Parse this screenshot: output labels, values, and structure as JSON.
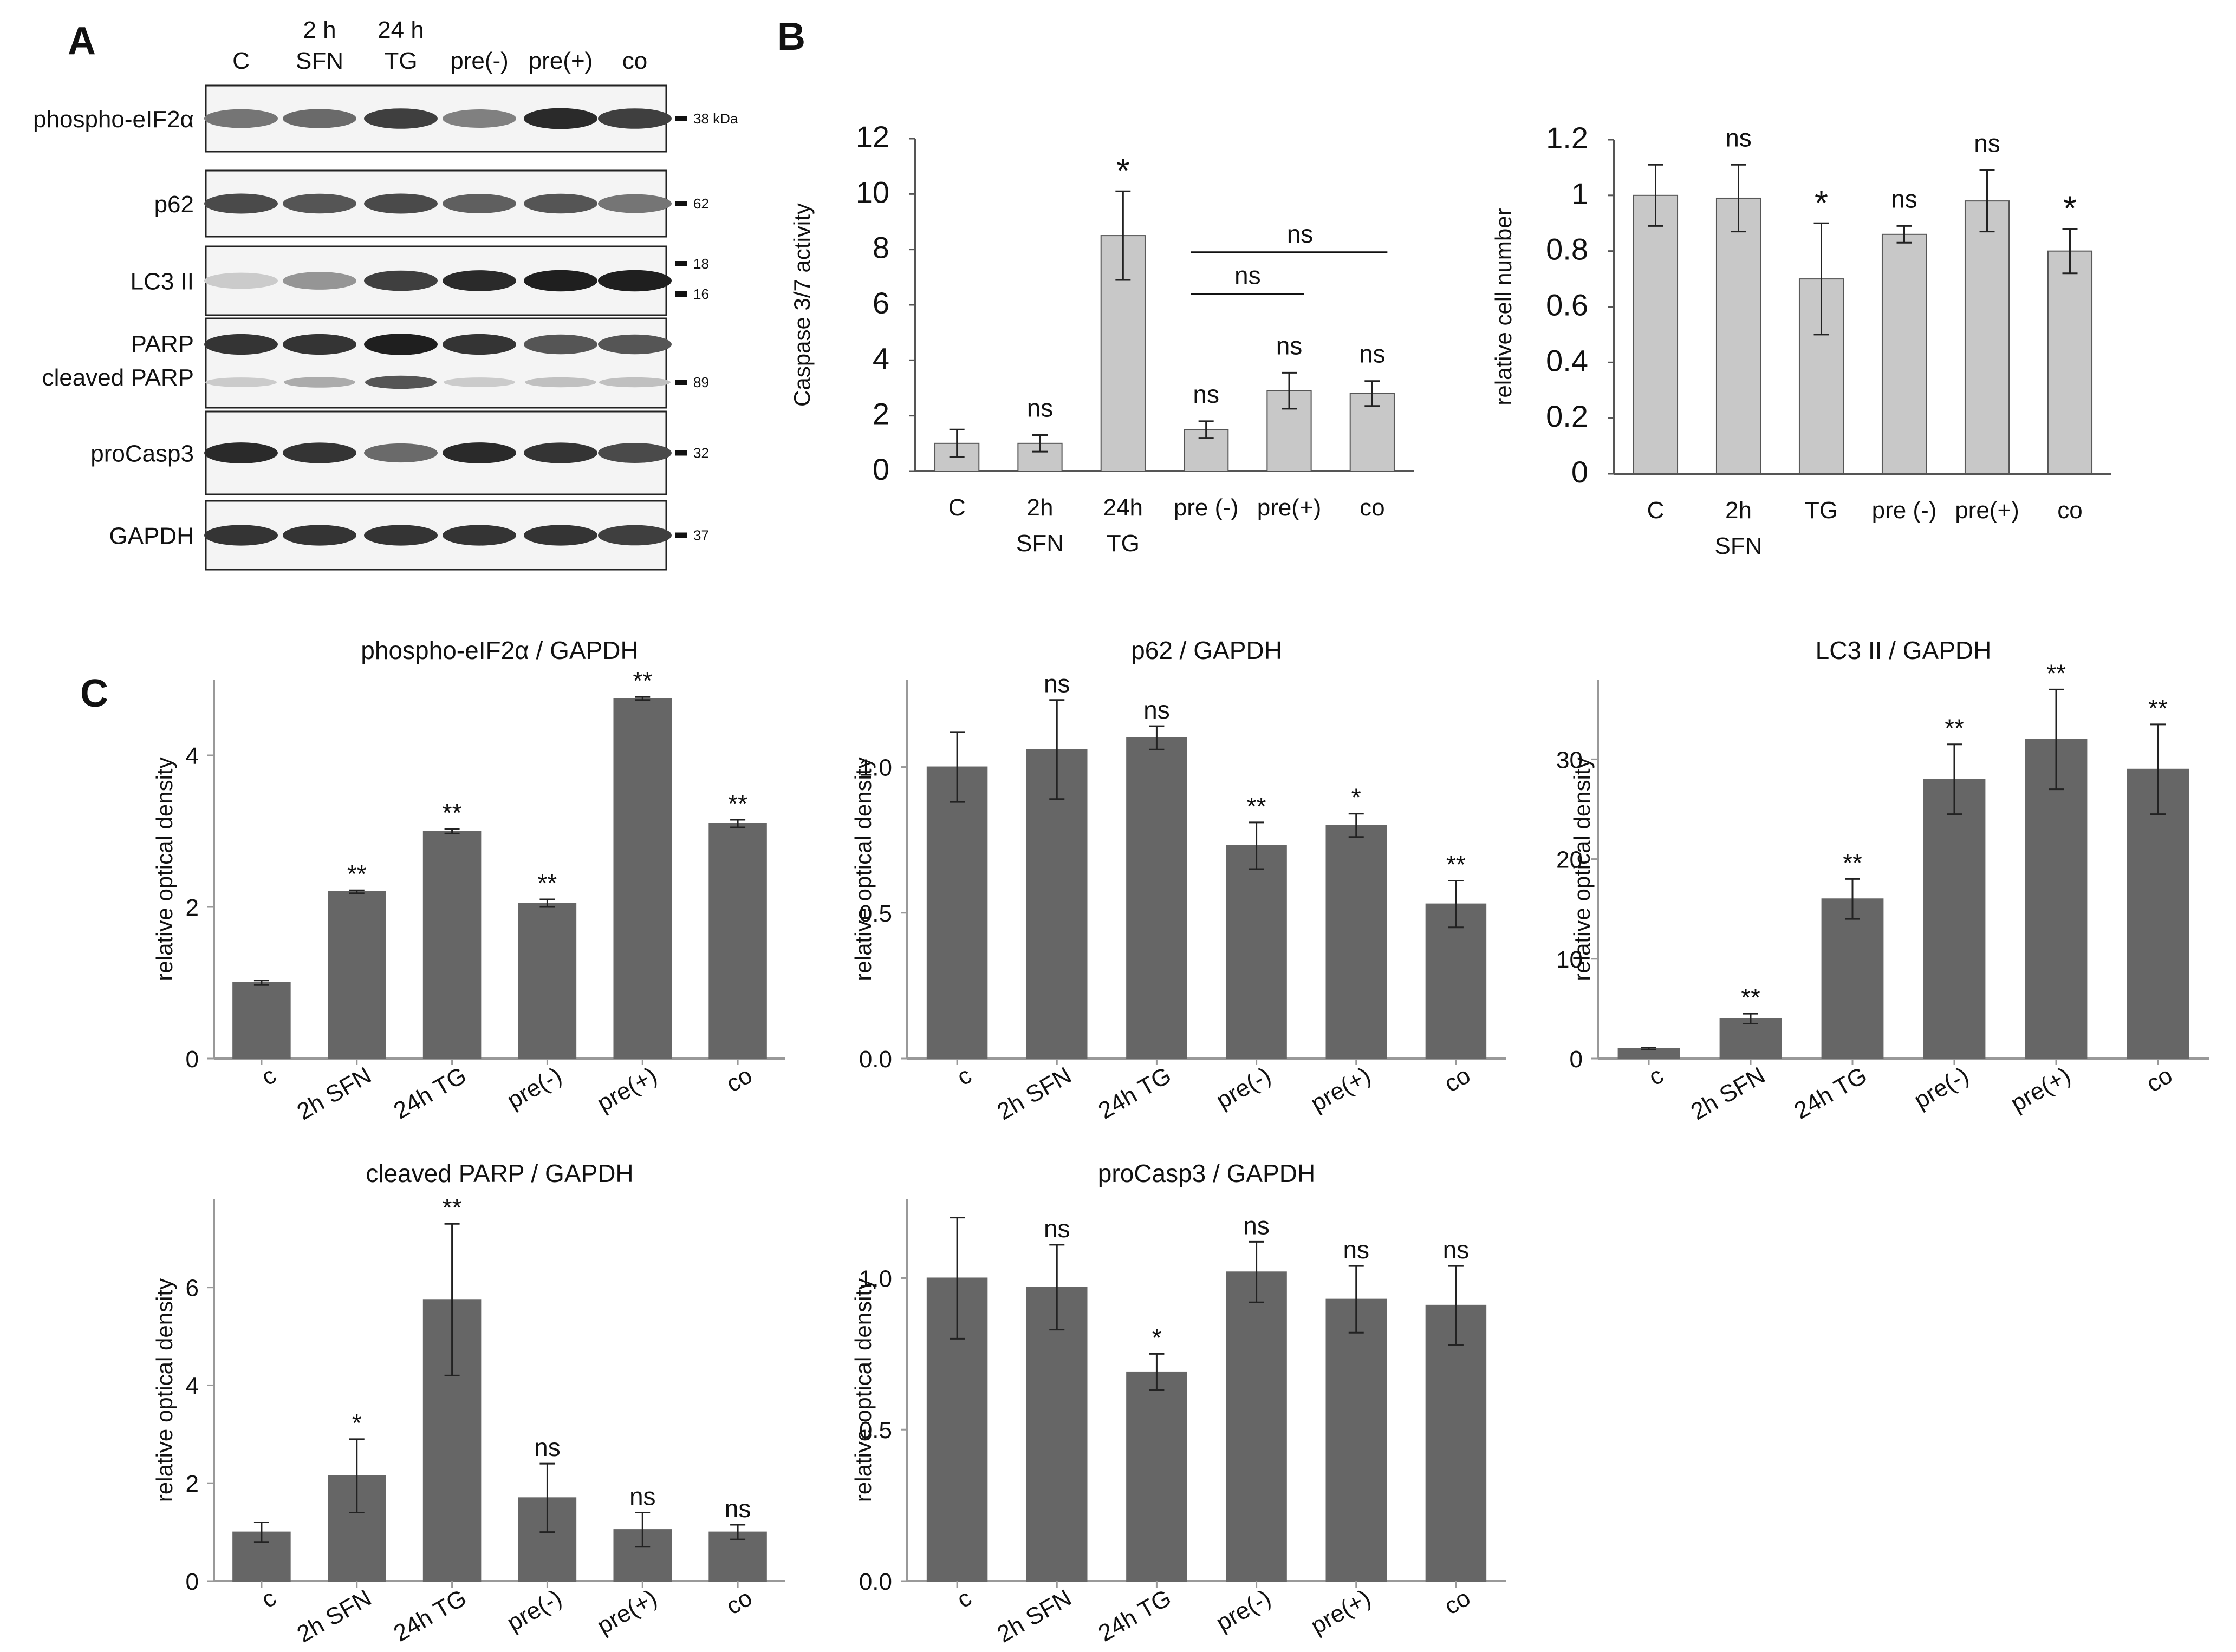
{
  "figure": {
    "panel_letters": [
      "A",
      "B",
      "C"
    ]
  },
  "blot": {
    "lanes": [
      {
        "line1": "C",
        "line2": ""
      },
      {
        "line1": "2 h",
        "line2": "SFN"
      },
      {
        "line1": "24 h",
        "line2": "TG"
      },
      {
        "line1": "pre(-)",
        "line2": ""
      },
      {
        "line1": "pre(+)",
        "line2": ""
      },
      {
        "line1": "co",
        "line2": ""
      }
    ],
    "rows": [
      {
        "labels": [
          "phospho-eIF2α"
        ],
        "markers": [
          "38 kDa"
        ],
        "intensity": [
          0.55,
          0.6,
          0.8,
          0.5,
          0.9,
          0.8
        ]
      },
      {
        "labels": [
          "p62"
        ],
        "markers": [
          "62"
        ],
        "intensity": [
          0.75,
          0.7,
          0.75,
          0.65,
          0.7,
          0.55
        ]
      },
      {
        "labels": [
          "LC3 II"
        ],
        "markers": [
          "18",
          "16"
        ],
        "intensity": [
          0.15,
          0.4,
          0.8,
          0.9,
          0.95,
          0.95
        ]
      },
      {
        "labels": [
          "PARP",
          "cleaved PARP"
        ],
        "markers": [
          "89"
        ],
        "intensity": [
          0.85,
          0.85,
          0.95,
          0.85,
          0.7,
          0.7
        ],
        "intensity2": [
          0.15,
          0.3,
          0.7,
          0.15,
          0.2,
          0.2
        ]
      },
      {
        "labels": [
          "proCasp3"
        ],
        "markers": [
          "32"
        ],
        "intensity": [
          0.9,
          0.85,
          0.6,
          0.9,
          0.85,
          0.75
        ]
      },
      {
        "labels": [
          "GAPDH"
        ],
        "markers": [
          "37"
        ],
        "intensity": [
          0.85,
          0.85,
          0.85,
          0.85,
          0.85,
          0.8
        ]
      }
    ]
  },
  "chart_data": [
    {
      "id": "caspase",
      "type": "bar",
      "title": "",
      "xlabel": "",
      "ylabel": "Caspase 3/7 activity",
      "ylim": [
        0,
        12
      ],
      "yticks": [
        "0",
        "2",
        "4",
        "6",
        "8",
        "10",
        "12"
      ],
      "categories": [
        "C",
        "2h\nSFN",
        "24h\nTG",
        "pre (-)",
        "pre(+)",
        "co"
      ],
      "values": [
        1.0,
        1.0,
        8.5,
        1.5,
        2.9,
        2.8
      ],
      "errors": [
        0.5,
        0.3,
        1.6,
        0.3,
        0.65,
        0.45
      ],
      "significance": [
        "",
        "ns",
        "*",
        "ns",
        "ns",
        "ns"
      ],
      "brackets": [
        {
          "label": "ns",
          "from": 3,
          "to": 4,
          "y": 6.4
        },
        {
          "label": "ns",
          "from": 3,
          "to": 5,
          "y": 7.9
        }
      ],
      "colors": {
        "bar": "#c8c8c8",
        "edge": "#555555"
      }
    },
    {
      "id": "cellnumber",
      "type": "bar",
      "title": "",
      "xlabel": "",
      "ylabel": "relative cell number",
      "ylim": [
        0,
        1.2
      ],
      "yticks": [
        "0",
        "0.2",
        "0.4",
        "0.6",
        "0.8",
        "1",
        "1.2"
      ],
      "categories": [
        "C",
        "2h\nSFN",
        "TG",
        "pre (-)",
        "pre(+)",
        "co"
      ],
      "values": [
        1.0,
        0.99,
        0.7,
        0.86,
        0.98,
        0.8
      ],
      "errors": [
        0.11,
        0.12,
        0.2,
        0.03,
        0.11,
        0.08
      ],
      "significance": [
        "",
        "ns",
        "*",
        "ns",
        "ns",
        "*"
      ],
      "colors": {
        "bar": "#c8c8c8",
        "edge": "#555555"
      }
    },
    {
      "id": "peif",
      "type": "bar",
      "title": "phospho-eIF2α / GAPDH",
      "xlabel": "",
      "ylabel": "relative optical density",
      "ylim": [
        0,
        5
      ],
      "yticks": [
        "0",
        "2",
        "4"
      ],
      "ytick_values": [
        0,
        2,
        4
      ],
      "categories": [
        "c",
        "2h SFN",
        "24h TG",
        "pre(-)",
        "pre(+)",
        "co"
      ],
      "values": [
        1.0,
        2.2,
        3.0,
        2.05,
        4.75,
        3.1
      ],
      "errors": [
        0.03,
        0.02,
        0.03,
        0.05,
        0.02,
        0.05
      ],
      "significance": [
        "",
        "**",
        "**",
        "**",
        "**",
        "**"
      ],
      "colors": {
        "bar": "#666666",
        "edge": "#666666"
      }
    },
    {
      "id": "p62",
      "type": "bar",
      "title": "p62 / GAPDH",
      "xlabel": "",
      "ylabel": "relative optical density",
      "ylim": [
        0,
        1.3
      ],
      "yticks": [
        "0.0",
        "0.5",
        "1.0"
      ],
      "ytick_values": [
        0,
        0.5,
        1.0
      ],
      "categories": [
        "c",
        "2h SFN",
        "24h TG",
        "pre(-)",
        "pre(+)",
        "co"
      ],
      "values": [
        1.0,
        1.06,
        1.1,
        0.73,
        0.8,
        0.53
      ],
      "errors": [
        0.12,
        0.17,
        0.04,
        0.08,
        0.04,
        0.08
      ],
      "significance": [
        "",
        "ns",
        "ns",
        "**",
        "*",
        "**"
      ],
      "colors": {
        "bar": "#666666",
        "edge": "#666666"
      }
    },
    {
      "id": "lc3",
      "type": "bar",
      "title": "LC3 II / GAPDH",
      "xlabel": "",
      "ylabel": "relative optical density",
      "ylim": [
        0,
        38
      ],
      "yticks": [
        "0",
        "10",
        "20",
        "30"
      ],
      "ytick_values": [
        0,
        10,
        20,
        30
      ],
      "categories": [
        "c",
        "2h SFN",
        "24h TG",
        "pre(-)",
        "pre(+)",
        "co"
      ],
      "values": [
        1.0,
        4.0,
        16.0,
        28.0,
        32.0,
        29.0
      ],
      "errors": [
        0.1,
        0.5,
        2.0,
        3.5,
        5.0,
        4.5
      ],
      "significance": [
        "",
        "**",
        "**",
        "**",
        "**",
        "**"
      ],
      "colors": {
        "bar": "#666666",
        "edge": "#666666"
      }
    },
    {
      "id": "parp",
      "type": "bar",
      "title": "cleaved PARP / GAPDH",
      "xlabel": "",
      "ylabel": "relative optical density",
      "ylim": [
        0,
        7.8
      ],
      "yticks": [
        "0",
        "2",
        "4",
        "6"
      ],
      "ytick_values": [
        0,
        2,
        4,
        6
      ],
      "categories": [
        "c",
        "2h SFN",
        "24h TG",
        "pre(-)",
        "pre(+)",
        "co"
      ],
      "values": [
        1.0,
        2.15,
        5.75,
        1.7,
        1.05,
        1.0
      ],
      "errors": [
        0.2,
        0.75,
        1.55,
        0.7,
        0.35,
        0.15
      ],
      "significance": [
        "",
        "*",
        "**",
        "ns",
        "ns",
        "ns"
      ],
      "colors": {
        "bar": "#666666",
        "edge": "#666666"
      }
    },
    {
      "id": "procasp",
      "type": "bar",
      "title": "proCasp3 / GAPDH",
      "xlabel": "",
      "ylabel": "relative optical density",
      "ylim": [
        0,
        1.26
      ],
      "yticks": [
        "0.0",
        "0.5",
        "1.0"
      ],
      "ytick_values": [
        0,
        0.5,
        1.0
      ],
      "categories": [
        "c",
        "2h SFN",
        "24h TG",
        "pre(-)",
        "pre(+)",
        "co"
      ],
      "values": [
        1.0,
        0.97,
        0.69,
        1.02,
        0.93,
        0.91
      ],
      "errors": [
        0.2,
        0.14,
        0.06,
        0.1,
        0.11,
        0.13
      ],
      "significance": [
        "",
        "ns",
        "*",
        "ns",
        "ns",
        "ns"
      ],
      "colors": {
        "bar": "#666666",
        "edge": "#666666"
      }
    }
  ]
}
